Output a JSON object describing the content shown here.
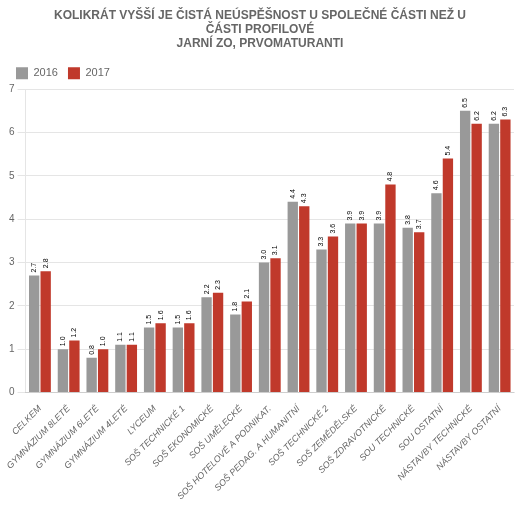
{
  "chart_data": {
    "type": "bar",
    "title": "KOLIKRÁT VYŠŠÍ JE ČISTÁ NEÚSPĚŠNOST U SPOLEČNÉ ČÁSTI NEŽ U\nČÁSTI PROFILOVÉ\nJARNÍ ZO, PRVOMATURANTI",
    "categories": [
      "CELKEM",
      "GYMNÁZIUM 8LETÉ",
      "GYMNÁZIUM 6LETÉ",
      "GYMNÁZIUM 4LETÉ",
      "LYCEUM",
      "SOŠ TECHNICKÉ 1",
      "SOŠ EKONOMICKÉ",
      "SOŠ UMĚLECKÉ",
      "SOŠ HOTELOVÉ A PODNIKAT.",
      "SOŠ PEDAG. A HUMANITNÍ",
      "SOŠ TECHNICKÉ 2",
      "SOŠ ZEMĚDĚLSKÉ",
      "SOŠ ZDRAVOTNICKÉ",
      "SOU TECHNICKÉ",
      "SOU OSTATNÍ",
      "NÁSTAVBY TECHNICKÉ",
      "NÁSTAVBY OSTATNÍ"
    ],
    "series": [
      {
        "name": "2016",
        "color": "#999999",
        "values": [
          2.7,
          1.0,
          0.8,
          1.1,
          1.5,
          1.5,
          2.2,
          1.8,
          3.0,
          4.4,
          3.3,
          3.9,
          3.9,
          3.8,
          4.6,
          6.5,
          6.2
        ],
        "value_labels": [
          "2.7",
          "1.0",
          "0.8",
          "1.1",
          "1.5",
          "1.5",
          "2.2",
          "1.8",
          "3.0",
          "4.4",
          "3.3",
          "3.9",
          "3.9",
          "3.8",
          "4.6",
          "6.5",
          "6.2"
        ]
      },
      {
        "name": "2017",
        "color": "#c0392b",
        "values": [
          2.8,
          1.2,
          1.0,
          1.1,
          1.6,
          1.6,
          2.3,
          2.1,
          3.1,
          4.3,
          3.6,
          3.9,
          4.8,
          3.7,
          5.4,
          6.2,
          6.3
        ],
        "value_labels": [
          "2.8",
          "1.2",
          "1.0",
          "1.1",
          "1.6",
          "1.6",
          "2.3",
          "2.1",
          "3.1",
          "4.3",
          "3.6",
          "3.9",
          "4.8",
          "3.7",
          "5.4",
          "6.2",
          "6.3"
        ]
      }
    ],
    "ylim": [
      0,
      7
    ],
    "yticks": [
      0,
      1,
      2,
      3,
      4,
      5,
      6,
      7
    ],
    "grid": true,
    "legend": "upper left",
    "data_labels": true
  }
}
